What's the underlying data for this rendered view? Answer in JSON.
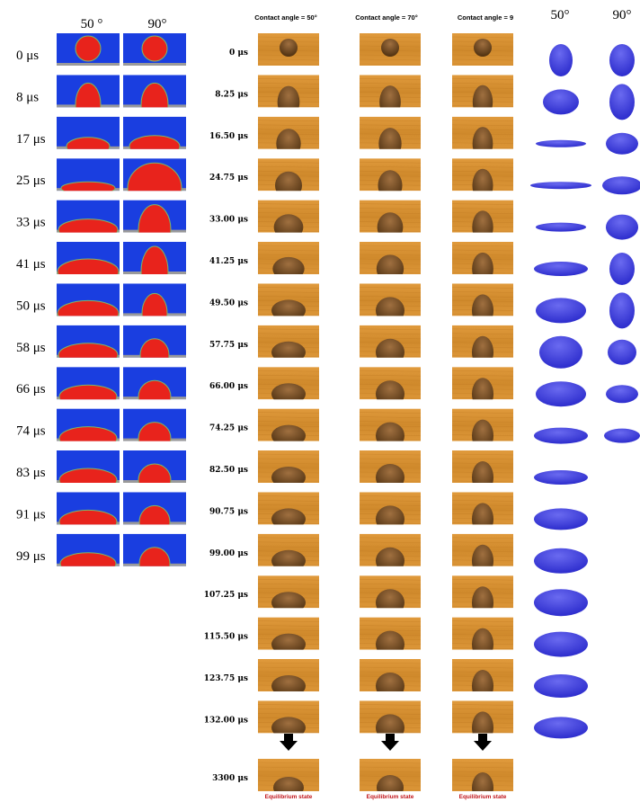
{
  "left_panel": {
    "column_headers": [
      "50 °",
      "90°"
    ],
    "time_labels": [
      "0 μs",
      "8 μs",
      "17 μs",
      "25 μs",
      "33 μs",
      "41 μs",
      "50 μs",
      "58 μs",
      "66 μs",
      "74 μs",
      "83 μs",
      "91 μs",
      "99 μs"
    ]
  },
  "middle_panel": {
    "column_headers": [
      "Contact angle = 50°",
      "Contact angle = 70°",
      "Contact angle = 9"
    ],
    "time_labels": [
      "0 μs",
      "8.25 μs",
      "16.50 μs",
      "24.75 μs",
      "33.00 μs",
      "41.25 μs",
      "49.50 μs",
      "57.75 μs",
      "66.00 μs",
      "74.25 μs",
      "82.50 μs",
      "90.75 μs",
      "99.00 μs",
      "107.25 μs",
      "115.50 μs",
      "123.75 μs",
      "132.00 μs"
    ],
    "final_time_label": "3300 μs",
    "final_state_labels": [
      "Equilibrium state",
      "Equilibrium state",
      "Equilibrium state"
    ]
  },
  "right_panel": {
    "column_headers": [
      "50°",
      "90°"
    ]
  }
}
